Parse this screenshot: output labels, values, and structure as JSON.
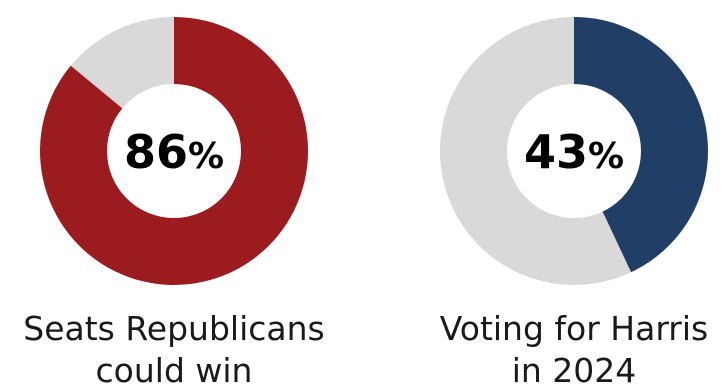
{
  "chart_data": [
    {
      "type": "pie",
      "variant": "donut",
      "values": [
        86,
        14
      ],
      "labels": [
        "Seats Republicans could win",
        ""
      ],
      "colors": [
        "#9b1b1f",
        "#d9d9d9"
      ],
      "center_value": "86",
      "center_unit": "%",
      "caption_lines": [
        "Seats Republicans",
        "could win"
      ]
    },
    {
      "type": "pie",
      "variant": "donut",
      "values": [
        43,
        57
      ],
      "labels": [
        "Voting for Harris in 2024",
        ""
      ],
      "colors": [
        "#213f66",
        "#d9d9d9"
      ],
      "center_value": "43",
      "center_unit": "%",
      "caption_lines": [
        "Voting for Harris",
        "in 2024"
      ]
    }
  ]
}
